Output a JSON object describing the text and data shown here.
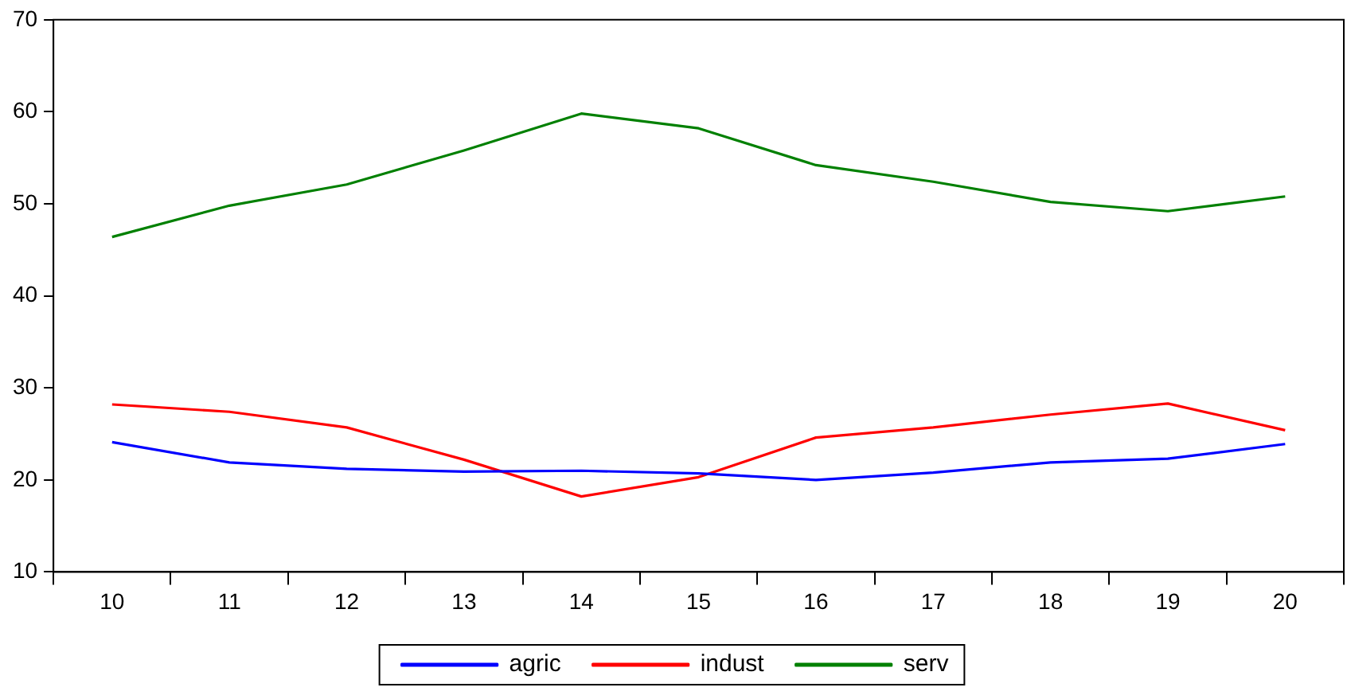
{
  "chart_data": {
    "type": "line",
    "categories": [
      "10",
      "11",
      "12",
      "13",
      "14",
      "15",
      "16",
      "17",
      "18",
      "19",
      "20"
    ],
    "series": [
      {
        "name": "agric",
        "color": "#0000ff",
        "values": [
          24.1,
          21.9,
          21.2,
          20.9,
          21.0,
          20.7,
          20.0,
          20.8,
          21.9,
          22.3,
          23.9
        ]
      },
      {
        "name": "indust",
        "color": "#ff0000",
        "values": [
          28.2,
          27.4,
          25.7,
          22.2,
          18.2,
          20.3,
          24.6,
          25.7,
          27.1,
          28.3,
          25.4
        ]
      },
      {
        "name": "serv",
        "color": "#008000",
        "values": [
          46.4,
          49.8,
          52.1,
          55.8,
          59.8,
          58.2,
          54.2,
          52.4,
          50.2,
          49.2,
          50.8
        ]
      }
    ],
    "ylim": [
      10,
      70
    ],
    "yticks": [
      10,
      20,
      30,
      40,
      50,
      60,
      70
    ],
    "grid": false,
    "legend": "bottom",
    "marker": "none",
    "line_style": "solid"
  }
}
